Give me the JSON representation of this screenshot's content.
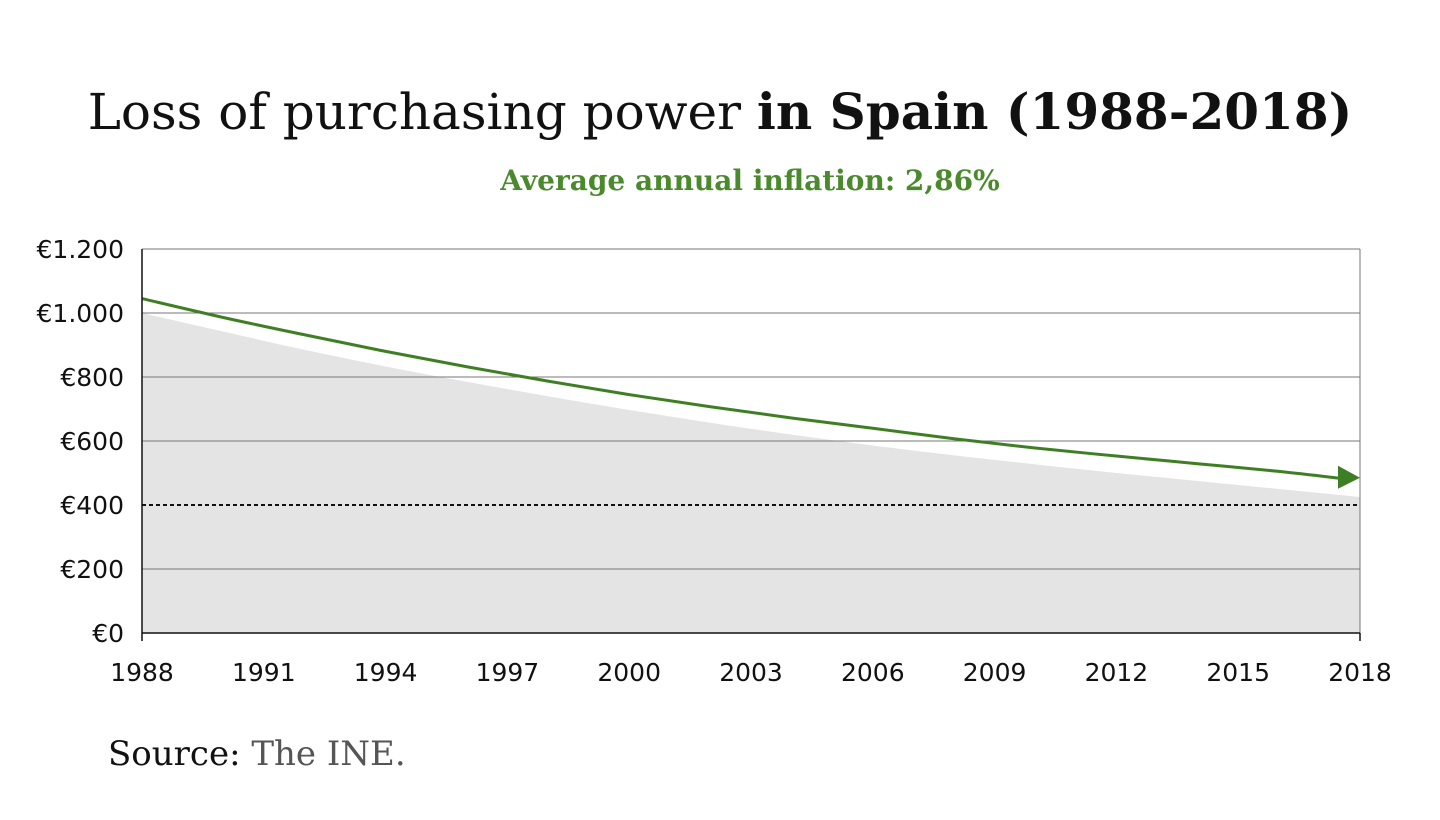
{
  "title": {
    "part1": "Loss of purchasing power ",
    "part2": "in Spain (1988-2018)"
  },
  "subtitle": "Average annual inflation: 2,86%",
  "source": {
    "label": "Source:",
    "value": " The INE."
  },
  "colors": {
    "line": "#3f7f24",
    "area": "#e4e4e4",
    "grid": "#777777",
    "text": "#111111"
  },
  "chart_data": {
    "type": "line",
    "x": [
      1988,
      1990,
      1992,
      1994,
      1996,
      1998,
      2000,
      2002,
      2004,
      2006,
      2008,
      2010,
      2012,
      2014,
      2016,
      2018
    ],
    "series": [
      {
        "values": [
          1045,
          986,
          932,
          880,
          832,
          787,
          745,
          707,
          672,
          640,
          607,
          578,
          553,
          529,
          505,
          485
        ],
        "style": "green line with arrow"
      },
      {
        "values": [
          1000,
          942,
          885,
          833,
          785,
          740,
          697,
          657,
          620,
          586,
          555,
          527,
          500,
          475,
          450,
          425
        ],
        "style": "grey filled area"
      }
    ],
    "reference_line": {
      "value": 400,
      "style": "dotted"
    },
    "xticks": [
      1988,
      1991,
      1994,
      1997,
      2000,
      2003,
      2006,
      2009,
      2012,
      2015,
      2018
    ],
    "yticks": [
      0,
      200,
      400,
      600,
      800,
      1000,
      1200
    ],
    "ytick_labels": [
      "€0",
      "€200",
      "€400",
      "€600",
      "€800",
      "€1.000",
      "€1.200"
    ],
    "xlim": [
      1988,
      2018
    ],
    "ylim": [
      0,
      1200
    ],
    "grid": "horizontal"
  }
}
